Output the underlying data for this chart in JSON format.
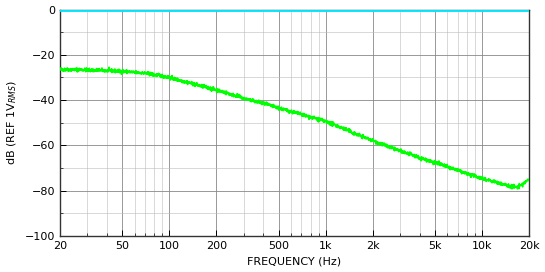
{
  "xlabel": "FREQUENCY (Hz)",
  "ylabel": "dB (REF 1V$_{RMS}$)",
  "xlim": [
    20,
    20000
  ],
  "ylim": [
    -100,
    0
  ],
  "yticks": [
    0,
    -20,
    -40,
    -60,
    -80,
    -100
  ],
  "xtick_labels": [
    "20",
    "50",
    "100",
    "200",
    "500",
    "1k",
    "2k",
    "5k",
    "10k",
    "20k"
  ],
  "xtick_values": [
    20,
    50,
    100,
    200,
    500,
    1000,
    2000,
    5000,
    10000,
    20000
  ],
  "cyan_line_color": "#00E5FF",
  "green_line_color": "#00FF00",
  "background_color": "#FFFFFF",
  "grid_color_major": "#888888",
  "grid_color_minor": "#BBBBBB",
  "border_color": "#333333",
  "cyan_y": 0.0,
  "green_freqs": [
    20,
    22,
    25,
    28,
    30,
    35,
    40,
    45,
    50,
    55,
    60,
    65,
    70,
    75,
    80,
    85,
    90,
    95,
    100,
    110,
    120,
    130,
    140,
    150,
    160,
    170,
    180,
    200,
    220,
    250,
    280,
    300,
    350,
    400,
    450,
    500,
    550,
    600,
    650,
    700,
    750,
    800,
    850,
    900,
    950,
    1000,
    1100,
    1200,
    1400,
    1500,
    1700,
    2000,
    2200,
    2500,
    3000,
    3500,
    4000,
    4500,
    5000,
    5500,
    6000,
    7000,
    8000,
    9000,
    10000,
    12000,
    15000,
    17000,
    20000
  ],
  "green_dbs": [
    -26.5,
    -26.5,
    -26.5,
    -26.5,
    -26.8,
    -26.8,
    -27.0,
    -27.1,
    -27.3,
    -27.5,
    -27.8,
    -27.9,
    -28.1,
    -28.4,
    -28.8,
    -29.0,
    -29.3,
    -29.7,
    -30.0,
    -30.8,
    -31.5,
    -32.0,
    -32.7,
    -33.2,
    -33.8,
    -34.2,
    -34.7,
    -35.5,
    -36.3,
    -37.5,
    -38.5,
    -39.2,
    -40.5,
    -41.5,
    -42.5,
    -43.5,
    -44.3,
    -45.0,
    -45.7,
    -46.3,
    -46.9,
    -47.5,
    -48.0,
    -48.5,
    -49.0,
    -49.5,
    -50.5,
    -51.5,
    -53.5,
    -54.5,
    -56.0,
    -57.8,
    -59.0,
    -60.5,
    -62.5,
    -64.0,
    -65.5,
    -66.5,
    -67.5,
    -68.5,
    -69.5,
    -71.0,
    -72.5,
    -73.5,
    -74.5,
    -76.0,
    -78.0,
    -78.5,
    -75.0
  ],
  "noise_amplitude": 0.4,
  "noise_seed": 42,
  "linewidth_green": 1.2,
  "linewidth_cyan": 2.0,
  "figsize": [
    5.45,
    2.72
  ],
  "dpi": 100,
  "xlabel_fontsize": 8,
  "ylabel_fontsize": 8,
  "tick_fontsize": 8
}
